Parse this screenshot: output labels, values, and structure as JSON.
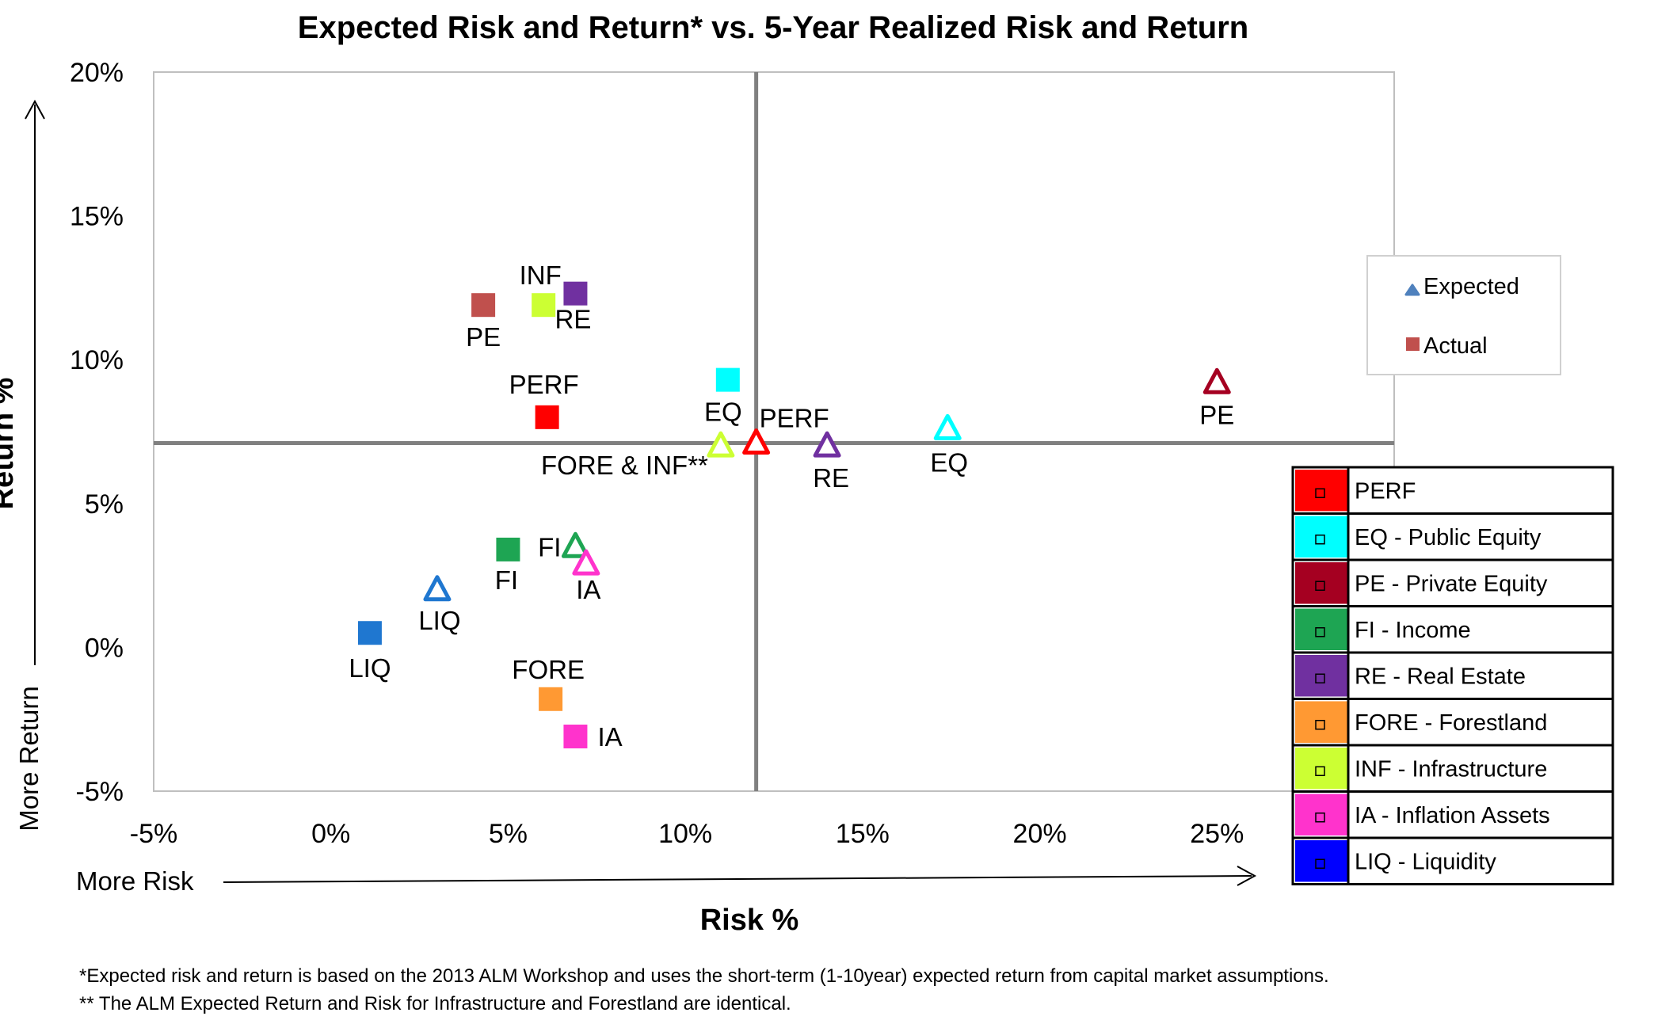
{
  "chart_data": {
    "type": "scatter",
    "title": "Expected Risk and Return* vs. 5-Year Realized Risk and Return",
    "xlabel": "Risk %",
    "ylabel": "Return %",
    "xlim": [
      -5,
      30
    ],
    "ylim": [
      -5,
      20
    ],
    "xticks": [
      -5,
      0,
      5,
      10,
      15,
      20,
      25
    ],
    "xtick_labels": [
      "-5%",
      "0%",
      "5%",
      "10%",
      "15%",
      "20%",
      "25%"
    ],
    "yticks": [
      -5,
      0,
      5,
      10,
      15,
      20
    ],
    "ytick_labels": [
      "-5%",
      "0%",
      "5%",
      "10%",
      "15%",
      "20%"
    ],
    "reference_lines": {
      "x": 12,
      "y": 7.1
    },
    "series_legend": [
      {
        "name": "Expected",
        "marker": "triangle",
        "color": "#4F81BD"
      },
      {
        "name": "Actual",
        "marker": "square",
        "color": "#C0504D"
      }
    ],
    "categories": [
      {
        "code": "PERF",
        "name": "PERF",
        "color": "#FF0000"
      },
      {
        "code": "EQ",
        "name": "EQ - Public Equity",
        "color": "#00FFFF"
      },
      {
        "code": "PE",
        "name": "PE - Private Equity",
        "color": "#A50021"
      },
      {
        "code": "FI",
        "name": "FI - Income",
        "color": "#1EA553"
      },
      {
        "code": "RE",
        "name": "RE - Real Estate",
        "color": "#7030A0"
      },
      {
        "code": "FORE",
        "name": "FORE - Forestland",
        "color": "#FF9933"
      },
      {
        "code": "INF",
        "name": "INF - Infrastructure",
        "color": "#CCFF33"
      },
      {
        "code": "IA",
        "name": "IA - Inflation Assets",
        "color": "#FF33CC"
      },
      {
        "code": "LIQ",
        "name": "LIQ - Liquidity",
        "color": "#0000FF"
      }
    ],
    "actual_points": [
      {
        "label": "PE",
        "x": 4.3,
        "y": 11.9,
        "color": "#C0504D"
      },
      {
        "label": "INF",
        "x": 6.0,
        "y": 11.9,
        "color": "#CCFF33"
      },
      {
        "label": "RE",
        "x": 6.9,
        "y": 12.3,
        "color": "#7030A0"
      },
      {
        "label": "PERF",
        "x": 6.1,
        "y": 8.0,
        "color": "#FF0000"
      },
      {
        "label": "EQ",
        "x": 11.2,
        "y": 9.3,
        "color": "#00FFFF"
      },
      {
        "label": "FI",
        "x": 5.0,
        "y": 3.4,
        "color": "#1EA553"
      },
      {
        "label": "LIQ",
        "x": 1.1,
        "y": 0.5,
        "color": "#1F77D0"
      },
      {
        "label": "FORE",
        "x": 6.2,
        "y": -1.8,
        "color": "#FF9933"
      },
      {
        "label": "IA",
        "x": 6.9,
        "y": -3.1,
        "color": "#FF33CC"
      }
    ],
    "expected_points": [
      {
        "label": "PE",
        "x": 25.0,
        "y": 9.2,
        "color": "#A50021"
      },
      {
        "label": "EQ",
        "x": 17.4,
        "y": 7.6,
        "color": "#00FFFF"
      },
      {
        "label": "PERF",
        "x": 12.0,
        "y": 7.1,
        "color": "#FF0000"
      },
      {
        "label": "FORE & INF**",
        "x": 11.0,
        "y": 7.0,
        "color": "#CCFF33"
      },
      {
        "label": "RE",
        "x": 14.0,
        "y": 7.0,
        "color": "#7030A0"
      },
      {
        "label": "FI",
        "x": 6.9,
        "y": 3.5,
        "color": "#1EA553"
      },
      {
        "label": "IA",
        "x": 7.2,
        "y": 2.9,
        "color": "#FF33CC"
      },
      {
        "label": "LIQ",
        "x": 3.0,
        "y": 2.0,
        "color": "#1F77D0"
      }
    ],
    "annotations": {
      "more_risk": "More Risk",
      "more_return": "More Return"
    },
    "footnotes": [
      "*Expected risk and return is based on the 2013 ALM Workshop and uses the short-term (1-10year) expected return from capital market assumptions.",
      "** The ALM Expected Return and Risk for Infrastructure and Forestland are identical."
    ]
  }
}
